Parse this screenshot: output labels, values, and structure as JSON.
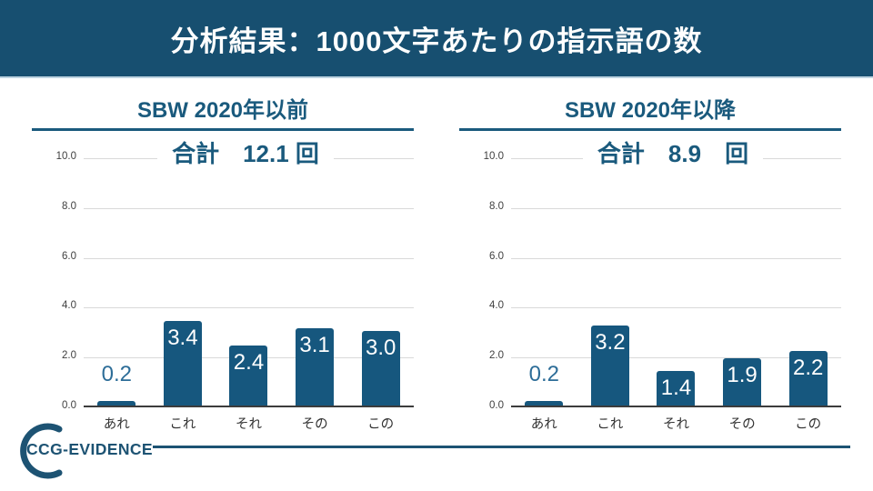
{
  "header": {
    "title": "分析結果：1000文字あたりの指示語の数"
  },
  "logo": {
    "text": "CCG-EVIDENCE"
  },
  "colors": {
    "header_bg": "#174f70",
    "header_text": "#ffffff",
    "accent": "#1a5a7d",
    "bar": "#16577e",
    "label_above": "#2d6d98",
    "grid": "#d9d9d9",
    "axis": "#3c3c3c",
    "tick_text": "#404040",
    "category_text": "#333333",
    "footer_line": "#1d5373"
  },
  "chart_data": [
    {
      "type": "bar",
      "title": "SBW 2020年以前",
      "total_text": "合計　12.1 回",
      "total_value": 12.1,
      "categories": [
        "あれ",
        "これ",
        "それ",
        "その",
        "この"
      ],
      "values": [
        0.2,
        3.4,
        2.4,
        3.1,
        3.0
      ],
      "ylim": [
        0,
        10
      ],
      "ytick_labels": [
        "0.0",
        "2.0",
        "4.0",
        "6.0",
        "8.0",
        "10.0"
      ],
      "grid": true,
      "legend": false,
      "value_label_decimals": 1
    },
    {
      "type": "bar",
      "title": "SBW 2020年以降",
      "total_text": "合計　8.9　回",
      "total_value": 8.9,
      "categories": [
        "あれ",
        "これ",
        "それ",
        "その",
        "この"
      ],
      "values": [
        0.2,
        3.2,
        1.4,
        1.9,
        2.2
      ],
      "ylim": [
        0,
        10
      ],
      "ytick_labels": [
        "0.0",
        "2.0",
        "4.0",
        "6.0",
        "8.0",
        "10.0"
      ],
      "grid": true,
      "legend": false,
      "value_label_decimals": 1
    }
  ]
}
